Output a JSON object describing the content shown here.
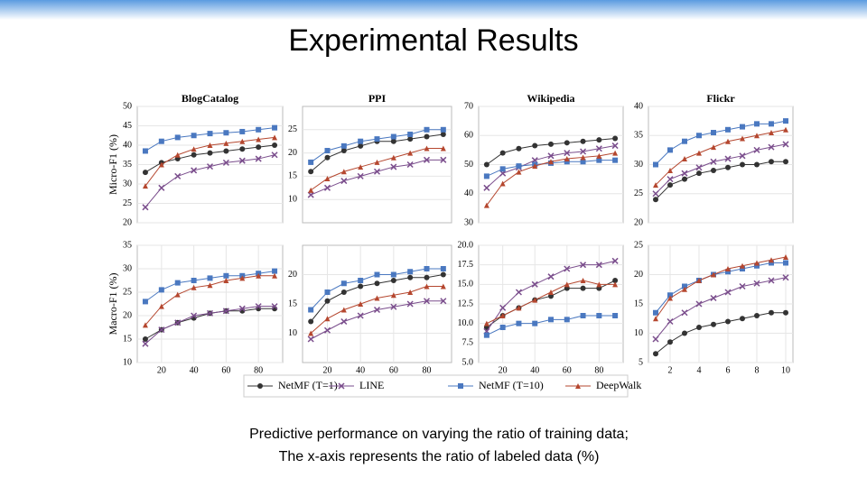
{
  "title": "Experimental Results",
  "caption": [
    "Predictive performance on varying the ratio of training data;",
    "The x-axis represents the ratio of labeled data (%)"
  ],
  "legend": [
    {
      "name": "NetMF (T=1)",
      "color": "#333333",
      "marker": "circle"
    },
    {
      "name": "LINE",
      "color": "#7a4d8c",
      "marker": "x"
    },
    {
      "name": "NetMF (T=10)",
      "color": "#4a78c0",
      "marker": "square"
    },
    {
      "name": "DeepWalk",
      "color": "#b5472f",
      "marker": "triangle"
    }
  ],
  "chart_data": [
    {
      "type": "line",
      "title": "BlogCatalog",
      "ylabel": "Micro-F1 (%)",
      "grid": true,
      "x": [
        10,
        20,
        30,
        40,
        50,
        60,
        70,
        80,
        90
      ],
      "xlim": [
        5,
        95
      ],
      "ylim": [
        20,
        50
      ],
      "yticks": [
        20,
        25,
        30,
        35,
        40,
        45,
        50
      ],
      "series": [
        {
          "values": [
            33,
            35.5,
            36.5,
            37.5,
            38,
            38.5,
            39,
            39.5,
            40
          ]
        },
        {
          "values": [
            24,
            29,
            32,
            33.5,
            34.5,
            35.5,
            36,
            36.5,
            37.5
          ]
        },
        {
          "values": [
            38.5,
            41,
            42,
            42.5,
            43,
            43.2,
            43.5,
            44,
            44.5
          ]
        },
        {
          "values": [
            29.5,
            35,
            37.5,
            39,
            40,
            40.5,
            41,
            41.5,
            42
          ]
        }
      ]
    },
    {
      "type": "line",
      "title": "PPI",
      "grid": true,
      "x": [
        10,
        20,
        30,
        40,
        50,
        60,
        70,
        80,
        90
      ],
      "xlim": [
        5,
        95
      ],
      "ylim": [
        5,
        30
      ],
      "yticks": [
        10,
        15,
        20,
        25
      ],
      "series": [
        {
          "values": [
            16,
            19,
            20.5,
            21.5,
            22.5,
            22.5,
            23,
            23.5,
            24
          ]
        },
        {
          "values": [
            11,
            12.5,
            14,
            15,
            16,
            17,
            17.5,
            18.5,
            18.5
          ]
        },
        {
          "values": [
            18,
            20.5,
            21.5,
            22.5,
            23,
            23.5,
            24,
            25,
            25
          ]
        },
        {
          "values": [
            12,
            14.5,
            16,
            17,
            18,
            19,
            20,
            21,
            21
          ]
        }
      ]
    },
    {
      "type": "line",
      "title": "Wikipedia",
      "grid": true,
      "x": [
        10,
        20,
        30,
        40,
        50,
        60,
        70,
        80,
        90
      ],
      "xlim": [
        5,
        95
      ],
      "ylim": [
        30,
        70
      ],
      "yticks": [
        30,
        40,
        50,
        60,
        70
      ],
      "series": [
        {
          "values": [
            50,
            54,
            55.5,
            56.5,
            57,
            57.5,
            58,
            58.5,
            59
          ]
        },
        {
          "values": [
            42,
            47,
            49,
            51.5,
            53,
            54,
            54.5,
            55.5,
            56.5
          ]
        },
        {
          "values": [
            46,
            48.5,
            49.5,
            50,
            50.5,
            51,
            51,
            51.5,
            51.5
          ]
        },
        {
          "values": [
            36,
            43.5,
            47.5,
            49.5,
            51,
            52,
            52.5,
            53,
            54
          ]
        }
      ]
    },
    {
      "type": "line",
      "title": "Flickr",
      "grid": true,
      "x": [
        1,
        2,
        3,
        4,
        5,
        6,
        7,
        8,
        9,
        10
      ],
      "xlim": [
        0.5,
        10.5
      ],
      "ylim": [
        20,
        40
      ],
      "yticks": [
        20,
        25,
        30,
        35,
        40
      ],
      "series": [
        {
          "values": [
            24,
            26.5,
            27.5,
            28.5,
            29,
            29.5,
            30,
            30,
            30.5,
            30.5
          ]
        },
        {
          "values": [
            25,
            27.5,
            28.5,
            29.5,
            30.5,
            31,
            31.5,
            32.5,
            33,
            33.5
          ]
        },
        {
          "values": [
            30,
            32.5,
            34,
            35,
            35.5,
            36,
            36.5,
            37,
            37,
            37.5
          ]
        },
        {
          "values": [
            26.5,
            29,
            31,
            32,
            33,
            34,
            34.5,
            35,
            35.5,
            36
          ]
        }
      ]
    },
    {
      "type": "line",
      "ylabel": "Macro-F1 (%)",
      "grid": true,
      "x": [
        10,
        20,
        30,
        40,
        50,
        60,
        70,
        80,
        90
      ],
      "xlim": [
        5,
        95
      ],
      "xticks": [
        20,
        40,
        60,
        80
      ],
      "ylim": [
        10,
        35
      ],
      "yticks": [
        10,
        15,
        20,
        25,
        30,
        35
      ],
      "series": [
        {
          "values": [
            15,
            17,
            18.5,
            19.5,
            20.5,
            21,
            21,
            21.5,
            21.5
          ]
        },
        {
          "values": [
            14,
            17,
            18.5,
            20,
            20.5,
            21,
            21.5,
            22,
            22
          ]
        },
        {
          "values": [
            23,
            25.5,
            27,
            27.5,
            28,
            28.5,
            28.5,
            29,
            29.5
          ]
        },
        {
          "values": [
            18,
            22,
            24.5,
            26,
            26.5,
            27.5,
            28,
            28.5,
            28.5
          ]
        }
      ]
    },
    {
      "type": "line",
      "grid": true,
      "x": [
        10,
        20,
        30,
        40,
        50,
        60,
        70,
        80,
        90
      ],
      "xlim": [
        5,
        95
      ],
      "xticks": [
        20,
        40,
        60,
        80
      ],
      "ylim": [
        5,
        25
      ],
      "yticks": [
        10,
        15,
        20
      ],
      "series": [
        {
          "values": [
            12,
            15.5,
            17,
            18,
            18.5,
            19,
            19.5,
            19.5,
            20
          ]
        },
        {
          "values": [
            9,
            10.5,
            12,
            13,
            14,
            14.5,
            15,
            15.5,
            15.5
          ]
        },
        {
          "values": [
            14,
            17,
            18.5,
            19,
            20,
            20,
            20.5,
            21,
            21
          ]
        },
        {
          "values": [
            10,
            12.5,
            14,
            15,
            16,
            16.5,
            17,
            18,
            18
          ]
        }
      ]
    },
    {
      "type": "line",
      "grid": true,
      "x": [
        10,
        20,
        30,
        40,
        50,
        60,
        70,
        80,
        90
      ],
      "xlim": [
        5,
        95
      ],
      "xticks": [
        20,
        40,
        60,
        80
      ],
      "ylim": [
        5,
        20
      ],
      "yticks": [
        {
          "value": 5,
          "label": "5.0"
        },
        7.5,
        {
          "value": 10,
          "label": "10.0"
        },
        12.5,
        {
          "value": 15,
          "label": "15.0"
        },
        17.5,
        {
          "value": 20,
          "label": "20.0"
        }
      ],
      "series": [
        {
          "values": [
            9.5,
            11,
            12,
            13,
            13.5,
            14.5,
            14.5,
            14.5,
            15.5
          ]
        },
        {
          "values": [
            9,
            12,
            14,
            15,
            16,
            17,
            17.5,
            17.5,
            18
          ]
        },
        {
          "values": [
            8.5,
            9.5,
            10,
            10,
            10.5,
            10.5,
            11,
            11,
            11
          ]
        },
        {
          "values": [
            10,
            11,
            12,
            13,
            14,
            15,
            15.5,
            15,
            15
          ]
        }
      ]
    },
    {
      "type": "line",
      "grid": true,
      "x": [
        1,
        2,
        3,
        4,
        5,
        6,
        7,
        8,
        9,
        10
      ],
      "xlim": [
        0.5,
        10.5
      ],
      "xticks": [
        2,
        4,
        6,
        8,
        10
      ],
      "ylim": [
        5,
        25
      ],
      "yticks": [
        5,
        10,
        15,
        20,
        25
      ],
      "series": [
        {
          "values": [
            6.5,
            8.5,
            10,
            11,
            11.5,
            12,
            12.5,
            13,
            13.5,
            13.5
          ]
        },
        {
          "values": [
            9,
            12,
            13.5,
            15,
            16,
            17,
            18,
            18.5,
            19,
            19.5
          ]
        },
        {
          "values": [
            13.5,
            16.5,
            18,
            19,
            20,
            20.5,
            21,
            21.5,
            22,
            22
          ]
        },
        {
          "values": [
            12.5,
            16,
            17.5,
            19,
            20,
            21,
            21.5,
            22,
            22.5,
            23
          ]
        }
      ]
    }
  ]
}
